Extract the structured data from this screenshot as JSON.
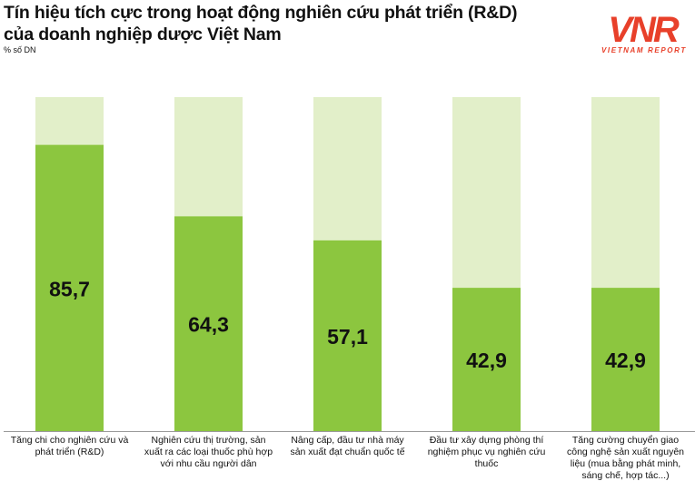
{
  "title_line1": "Tín hiệu tích cực trong hoạt động nghiên cứu phát triển (R&D)",
  "title_line2": "của doanh nghiệp dược Việt Nam",
  "logo_text": "VNR",
  "logo_caption": "VIETNAM REPORT",
  "colors": {
    "bar": "#8CC63F",
    "background_bar": "#E2EFC9",
    "logo": "#E8402A"
  },
  "chart_data": {
    "type": "bar",
    "ylabel": "% số DN",
    "ylim": [
      0,
      100
    ],
    "grid": false,
    "categories": [
      "Tăng chi cho nghiên cứu và phát triển (R&D)",
      "Nghiên cứu thị trường, sản xuất ra các loại thuốc phù hợp với nhu cầu người dân",
      "Nâng cấp, đầu tư nhà máy sản xuất đạt chuẩn quốc tế",
      "Đầu tư xây dựng phòng thí nghiệm phục vụ nghiên cứu thuốc",
      "Tăng cường chuyển giao công nghệ sản xuất nguyên liệu (mua bằng phát minh, sáng chế, hợp tác...)"
    ],
    "values": [
      85.7,
      64.3,
      57.1,
      42.9,
      42.9
    ],
    "value_labels": [
      "85,7",
      "64,3",
      "57,1",
      "42,9",
      "42,9"
    ]
  }
}
